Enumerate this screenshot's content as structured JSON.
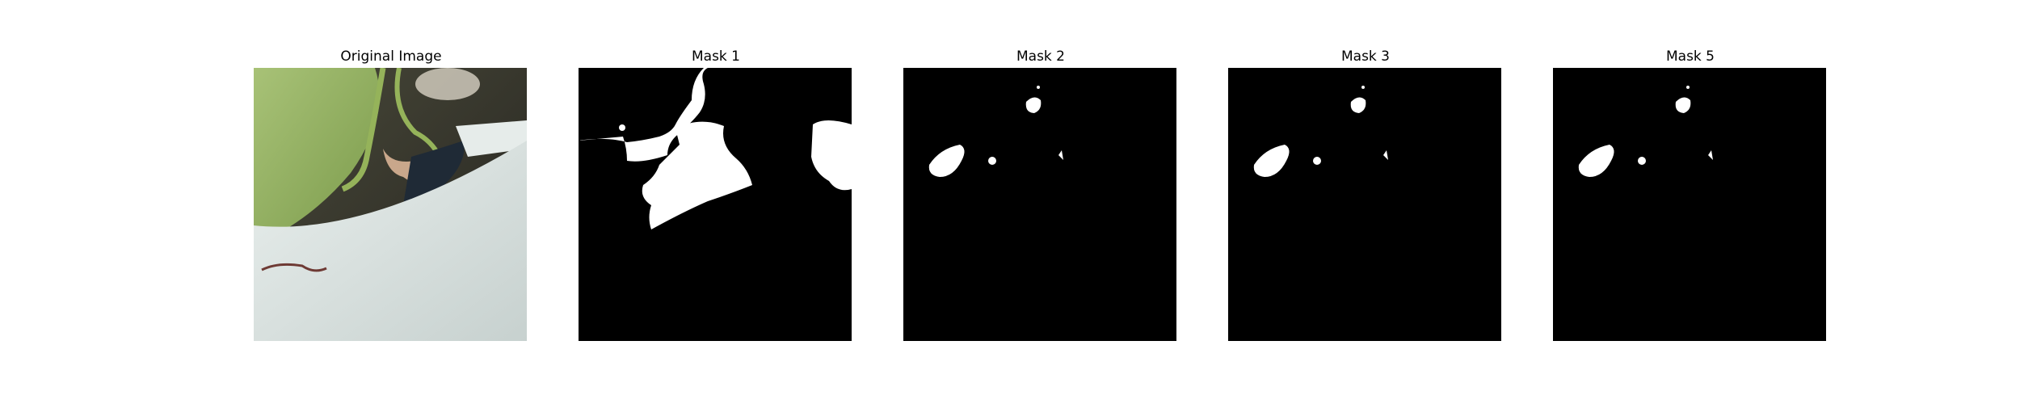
{
  "figure": {
    "panels": [
      {
        "title": "Original Image",
        "kind": "photo",
        "description_icon": "photo-icon"
      },
      {
        "title": "Mask 1",
        "kind": "mask"
      },
      {
        "title": "Mask 2",
        "kind": "mask"
      },
      {
        "title": "Mask 3",
        "kind": "mask"
      },
      {
        "title": "Mask 5",
        "kind": "mask"
      }
    ]
  },
  "colors": {
    "mask_background": "#000000",
    "mask_foreground": "#ffffff",
    "leaf_green": "#9bb86a",
    "dark_background": "#2b2a25",
    "white_surface": "#cfd8d6"
  }
}
